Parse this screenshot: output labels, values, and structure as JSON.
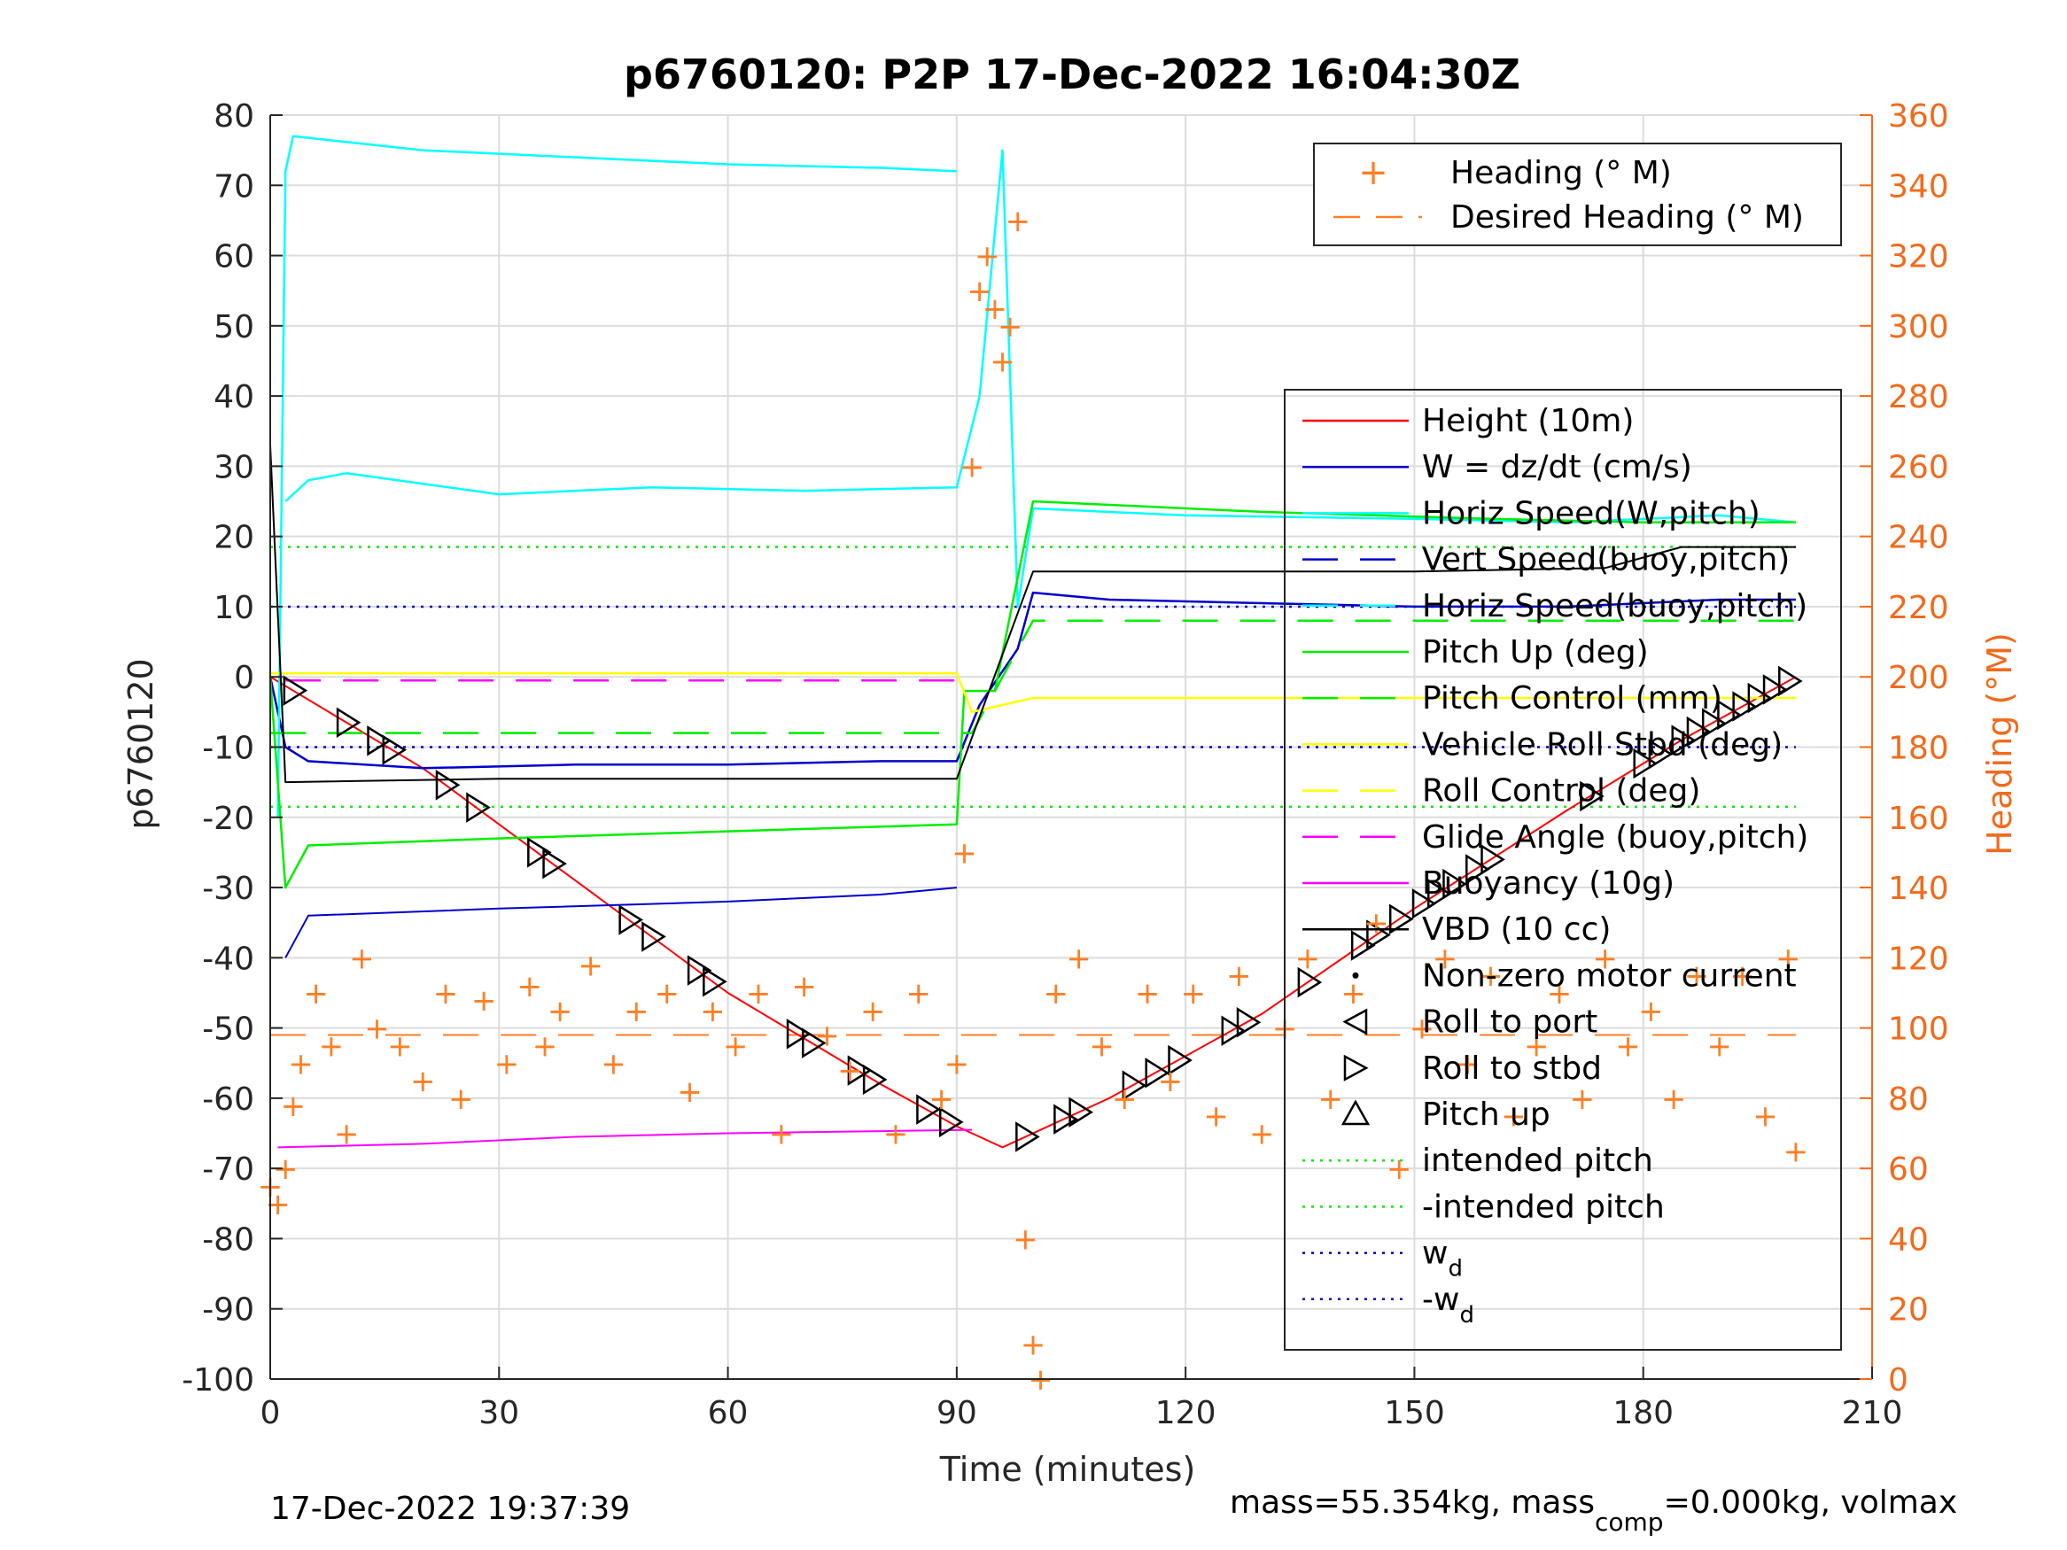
{
  "title": "p6760120: P2P 17-Dec-2022 16:04:30Z",
  "footer_left": "17-Dec-2022 19:37:39",
  "footer_right": {
    "pre": "mass=55.354kg, mass",
    "sub": "comp",
    "post": "=0.000kg, volmax"
  },
  "colors": {
    "heading": "#ff7f24",
    "axis_right": "#f26a1b",
    "height": "#ff0000",
    "w": "#0000cc",
    "horiz_speed": "#00ffff",
    "pitch": "#00ee00",
    "roll": "#ffff00",
    "glide": "#ff00ff",
    "buoyancy": "#ff00ff",
    "vbd": "#000000"
  },
  "chart_data": {
    "type": "line",
    "xlabel": "Time (minutes)",
    "ylabel": "p6760120",
    "ylabel_right": "Heading (°M)",
    "xlim": [
      0,
      210
    ],
    "ylim": [
      -100,
      80
    ],
    "ylim_right": [
      0,
      360
    ],
    "xticks": [
      "0",
      "30",
      "60",
      "90",
      "120",
      "150",
      "180",
      "210"
    ],
    "yticks": [
      "80",
      "70",
      "60",
      "50",
      "40",
      "30",
      "20",
      "10",
      "0",
      "-10",
      "-20",
      "-30",
      "-40",
      "-50",
      "-60",
      "-70",
      "-80",
      "-90",
      "-100"
    ],
    "yticks_right": [
      "360",
      "340",
      "320",
      "300",
      "280",
      "260",
      "240",
      "220",
      "200",
      "180",
      "160",
      "140",
      "120",
      "100",
      "80",
      "60",
      "40",
      "20",
      "0"
    ],
    "grid": true,
    "legend_top": [
      "Heading (° M)",
      "Desired Heading (° M)"
    ],
    "legend_main": [
      "Height (10m)",
      "W = dz/dt (cm/s)",
      "Horiz Speed(W,pitch)",
      "Vert Speed(buoy,pitch)",
      "Horiz Speed(buoy,pitch)",
      "Pitch Up (deg)",
      "Pitch Control (mm)",
      "Vehicle Roll Stbd (deg)",
      "Roll Control (deg)",
      "Glide Angle (buoy,pitch)",
      "Buoyancy (10g)",
      "VBD (10 cc)",
      "Non-zero motor current",
      "Roll to port",
      "Roll to stbd",
      "Pitch up",
      "intended pitch",
      "-intended pitch",
      "w_d",
      "-w_d"
    ],
    "series": [
      {
        "name": "Height (10m)",
        "points": [
          [
            0,
            0
          ],
          [
            20,
            -13
          ],
          [
            40,
            -29
          ],
          [
            60,
            -45
          ],
          [
            80,
            -58
          ],
          [
            90,
            -64
          ],
          [
            96,
            -67
          ],
          [
            110,
            -60
          ],
          [
            130,
            -48
          ],
          [
            150,
            -33
          ],
          [
            170,
            -19
          ],
          [
            185,
            -9
          ],
          [
            200,
            0
          ]
        ]
      },
      {
        "name": "W = dz/dt (cm/s)",
        "points": [
          [
            0,
            0
          ],
          [
            2,
            -10
          ],
          [
            5,
            -12
          ],
          [
            20,
            -13
          ],
          [
            40,
            -12.5
          ],
          [
            60,
            -12.5
          ],
          [
            80,
            -12
          ],
          [
            90,
            -12
          ],
          [
            93,
            -4
          ],
          [
            98,
            4
          ],
          [
            100,
            12
          ],
          [
            110,
            11
          ],
          [
            130,
            10.5
          ],
          [
            150,
            10
          ],
          [
            170,
            10
          ],
          [
            190,
            11
          ],
          [
            200,
            11
          ]
        ]
      },
      {
        "name": "W 30s trace",
        "points": [
          [
            2,
            -40
          ],
          [
            5,
            -34
          ],
          [
            30,
            -33
          ],
          [
            60,
            -32
          ],
          [
            80,
            -31
          ],
          [
            90,
            -30
          ]
        ]
      },
      {
        "name": "Horiz Speed(W,pitch)",
        "points": [
          [
            1,
            -20
          ],
          [
            2,
            72
          ],
          [
            3,
            77
          ],
          [
            20,
            75
          ],
          [
            40,
            74
          ],
          [
            60,
            73
          ],
          [
            80,
            72.5
          ],
          [
            90,
            72
          ]
        ]
      },
      {
        "name": "Horiz Speed low trace",
        "points": [
          [
            2,
            25
          ],
          [
            5,
            28
          ],
          [
            10,
            29
          ],
          [
            30,
            26
          ],
          [
            50,
            27
          ],
          [
            70,
            26.5
          ],
          [
            90,
            27
          ],
          [
            93,
            40
          ],
          [
            96,
            75
          ],
          [
            98,
            10
          ],
          [
            100,
            24
          ],
          [
            120,
            23
          ],
          [
            150,
            22.5
          ],
          [
            170,
            22
          ],
          [
            190,
            23
          ],
          [
            200,
            22
          ]
        ]
      },
      {
        "name": "Pitch Up (deg)",
        "points": [
          [
            0,
            0
          ],
          [
            2,
            -30
          ],
          [
            5,
            -24
          ],
          [
            30,
            -23
          ],
          [
            60,
            -22
          ],
          [
            90,
            -21
          ],
          [
            91,
            -2
          ],
          [
            95,
            -2
          ],
          [
            100,
            25
          ],
          [
            130,
            23.5
          ],
          [
            160,
            22.5
          ],
          [
            180,
            22
          ],
          [
            200,
            22
          ]
        ]
      },
      {
        "name": "Pitch Control (mm)",
        "points": [
          [
            0,
            -8
          ],
          [
            90,
            -8
          ],
          [
            92,
            -8
          ],
          [
            100,
            8
          ],
          [
            200,
            8
          ]
        ]
      },
      {
        "name": "Roll Control (deg)",
        "points": [
          [
            0,
            0.5
          ],
          [
            90,
            0.5
          ],
          [
            92,
            -5
          ],
          [
            100,
            -3
          ],
          [
            130,
            -3
          ],
          [
            160,
            -3
          ],
          [
            200,
            -3
          ]
        ]
      },
      {
        "name": "Glide Angle (buoy,pitch)",
        "points": [
          [
            2,
            -0.5
          ],
          [
            90,
            -0.5
          ]
        ]
      },
      {
        "name": "Buoyancy (10g)",
        "points": [
          [
            1,
            -67
          ],
          [
            20,
            -66.5
          ],
          [
            40,
            -65.5
          ],
          [
            60,
            -65
          ],
          [
            80,
            -64.7
          ],
          [
            92,
            -64.5
          ]
        ]
      },
      {
        "name": "VBD (10 cc)",
        "points": [
          [
            0,
            33
          ],
          [
            2,
            -15
          ],
          [
            30,
            -14.5
          ],
          [
            60,
            -14.5
          ],
          [
            90,
            -14.5
          ],
          [
            100,
            15
          ],
          [
            120,
            15
          ],
          [
            150,
            15
          ],
          [
            175,
            15.5
          ],
          [
            185,
            18.5
          ],
          [
            200,
            18.5
          ]
        ]
      }
    ],
    "reference_lines": [
      {
        "name": "intended pitch",
        "y": 18.5
      },
      {
        "name": "-intended pitch",
        "y": -18.5
      },
      {
        "name": "w_d",
        "y": 10
      },
      {
        "name": "-w_d",
        "y": -10
      }
    ],
    "roll_to_stbd_x": [
      3,
      10,
      14,
      16,
      23,
      27,
      35,
      37,
      47,
      50,
      56,
      58,
      69,
      71,
      77,
      79,
      86,
      89,
      99,
      104,
      106,
      113,
      116,
      119,
      126,
      128,
      136,
      143,
      145,
      148,
      151,
      153,
      155,
      158,
      160,
      173,
      180,
      182,
      185,
      187,
      189,
      191,
      193,
      195,
      197,
      199
    ],
    "heading_deg": {
      "x": [
        0,
        1,
        2,
        3,
        4,
        6,
        8,
        10,
        12,
        14,
        17,
        20,
        23,
        25,
        28,
        31,
        34,
        36,
        38,
        42,
        45,
        48,
        52,
        55,
        58,
        61,
        64,
        67,
        70,
        73,
        76,
        79,
        82,
        85,
        88,
        90,
        91,
        92,
        93,
        94,
        95,
        96,
        97,
        98,
        99,
        100,
        101,
        103,
        106,
        109,
        112,
        115,
        118,
        121,
        124,
        127,
        130,
        133,
        136,
        139,
        142,
        145,
        148,
        151,
        154,
        157,
        160,
        163,
        166,
        169,
        172,
        175,
        178,
        181,
        184,
        187,
        190,
        193,
        196,
        199,
        200
      ],
      "y": [
        55,
        50,
        60,
        78,
        90,
        110,
        95,
        70,
        120,
        100,
        95,
        85,
        110,
        80,
        108,
        90,
        112,
        95,
        105,
        118,
        90,
        105,
        110,
        82,
        105,
        95,
        110,
        70,
        112,
        98,
        88,
        105,
        70,
        110,
        80,
        90,
        150,
        260,
        310,
        320,
        305,
        290,
        300,
        330,
        40,
        10,
        0,
        110,
        120,
        95,
        80,
        110,
        85,
        110,
        75,
        115,
        70,
        100,
        120,
        80,
        110,
        130,
        60,
        100,
        120,
        90,
        115,
        75,
        95,
        110,
        80,
        120,
        95,
        105,
        80,
        115,
        95,
        115,
        75,
        120,
        65
      ]
    },
    "desired_heading_deg": {
      "x": [
        0,
        200
      ],
      "y": [
        98,
        98
      ]
    }
  }
}
